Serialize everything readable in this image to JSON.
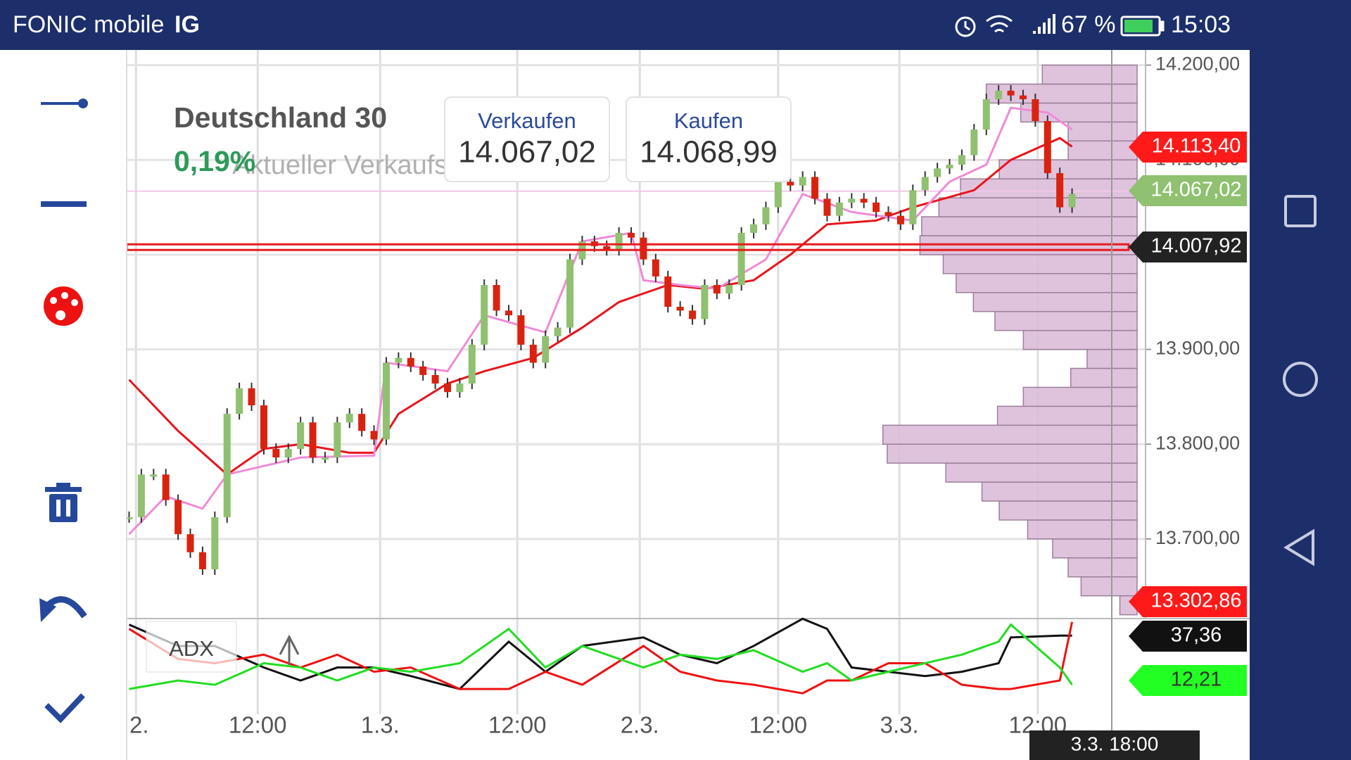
{
  "status_bar": {
    "carrier": "FONIC mobile",
    "carrier_badge": "IG",
    "battery": "67 %",
    "time": "15:03"
  },
  "header": {
    "instrument": "Deutschland 30",
    "change": "0,19%",
    "caption": "Aktueller Verkaufsk"
  },
  "quotes": [
    {
      "label": "Verkaufen",
      "price": "14.067,02"
    },
    {
      "label": "Kaufen",
      "price": "14.068,99"
    }
  ],
  "chart_data": {
    "type": "candlestick",
    "close": [
      13723,
      13768,
      13768,
      13741,
      13705,
      13686,
      13668,
      13723,
      13832,
      13859,
      13841,
      13795,
      13786,
      13795,
      13823,
      13786,
      13786,
      13823,
      13832,
      13814,
      13805,
      13886,
      13891,
      13882,
      13873,
      13864,
      13855,
      13864,
      13905,
      13968,
      13941,
      13936,
      13905,
      13886,
      13914,
      13923,
      13995,
      14014,
      14009,
      14005,
      14023,
      14018,
      13995,
      13977,
      13945,
      13941,
      13932,
      13968,
      13959,
      13968,
      14023,
      14032,
      14050,
      14077,
      14073,
      14082,
      14059,
      14041,
      14055,
      14059,
      14055,
      14045,
      14041,
      14032,
      14068,
      14082,
      14091,
      14095,
      14105,
      14132,
      14164,
      14173,
      14168,
      14164,
      14141,
      14086,
      14050,
      14064
    ],
    "up_color": "#8fc170",
    "down_color": "#d9230f",
    "series": [
      {
        "color": "#e8141c",
        "x": [
          0,
          4,
          8,
          11,
          14,
          18,
          20,
          22,
          26,
          29,
          33,
          37,
          40,
          44,
          47,
          51,
          54,
          57,
          61,
          64,
          69,
          72,
          76,
          77
        ],
        "values": [
          13868,
          13814,
          13768,
          13795,
          13800,
          13791,
          13791,
          13832,
          13864,
          13877,
          13891,
          13923,
          13950,
          13968,
          13964,
          13973,
          14000,
          14032,
          14036,
          14050,
          14068,
          14100,
          14123,
          14114
        ]
      },
      {
        "color": "#f08ad8",
        "x": [
          0,
          3,
          6,
          8,
          11,
          14,
          20,
          21,
          26,
          29,
          34,
          37,
          41,
          42,
          45,
          48,
          52,
          55,
          59,
          64,
          67,
          70,
          72,
          75,
          77
        ],
        "values": [
          13705,
          13745,
          13732,
          13768,
          13777,
          13786,
          13788,
          13886,
          13877,
          13936,
          13918,
          14014,
          14023,
          13973,
          13968,
          13964,
          13995,
          14064,
          14045,
          14036,
          14077,
          14095,
          14155,
          14150,
          14132
        ]
      }
    ],
    "xlim": [
      -0.2,
      83.0
    ],
    "xticks": [
      {
        "value": 0.56,
        "label": ".2."
      },
      {
        "value": 10.5,
        "label": "12:00"
      },
      {
        "value": 20.5,
        "label": "1.3."
      },
      {
        "value": 31.7,
        "label": "12:00"
      },
      {
        "value": 41.7,
        "label": "2.3."
      },
      {
        "value": 53.0,
        "label": "12:00"
      },
      {
        "value": 62.9,
        "label": "3.3."
      },
      {
        "value": 74.2,
        "label": "12:00"
      }
    ],
    "ylim": [
      13616,
      14216
    ],
    "yticks": [
      {
        "value": 13700,
        "label": "13.700,00"
      },
      {
        "value": 13800,
        "label": "13.800,00"
      },
      {
        "value": 13900,
        "label": "13.900,00"
      },
      {
        "value": 14000,
        "label": "14.000,00"
      },
      {
        "value": 14100,
        "label": "14.100,00"
      },
      {
        "value": 14200,
        "label": "14.200,00"
      }
    ],
    "grid": true,
    "hline": 14007.92,
    "hline_color": "#e51c1c",
    "sell_line": 14067.02,
    "sell_line_color": "#f2c6ea",
    "volume_profile": {
      "color": "#dcbcd9",
      "edge_color": "#9c7f9a",
      "bins": [
        13620,
        13640,
        13660,
        13680,
        13700,
        13720,
        13740,
        13760,
        13780,
        13800,
        13820,
        13840,
        13860,
        13880,
        13900,
        13920,
        13940,
        13960,
        13980,
        14000,
        14020,
        14040,
        14060,
        14080,
        14100,
        14120,
        14140,
        14160,
        14180,
        14200
      ],
      "values": [
        20,
        65,
        80,
        98,
        127,
        160,
        180,
        222,
        290,
        295,
        162,
        132,
        77,
        58,
        132,
        165,
        190,
        210,
        225,
        252,
        250,
        230,
        205,
        160,
        80,
        80,
        135,
        175,
        110
      ]
    },
    "price_tags": [
      {
        "label": "14.113,40",
        "color": "#ff1a1a",
        "text_color": "#ffffff"
      },
      {
        "label": "14.067,02",
        "color": "#8fc170",
        "text_color": "#ffffff"
      },
      {
        "label": "14.007,92",
        "color": "#222222",
        "text_color": "#ffffff"
      },
      {
        "label": "13.302,86",
        "color": "#ff1a1a",
        "text_color": "#ffffff"
      }
    ],
    "crosshair_label": "3.3. 18:00",
    "indicator": {
      "label": "ADX",
      "ylim": [
        3.5,
        47
      ],
      "x": [
        0,
        4,
        7,
        11,
        14,
        17,
        20,
        23,
        27,
        31,
        34,
        37,
        42,
        45,
        48,
        51,
        55,
        57,
        59,
        62,
        65,
        68,
        71,
        72,
        76,
        77
      ],
      "series": [
        {
          "color": "#111111",
          "values": [
            43.6,
            31.6,
            31.6,
            19.5,
            12.2,
            19.5,
            19.5,
            14.7,
            7.4,
            34.0,
            17.1,
            31.6,
            36.4,
            26.7,
            21.9,
            31.6,
            46.9,
            41.2,
            19.5,
            17.1,
            14.7,
            17.1,
            21.9,
            36.4,
            37.4,
            37.4
          ]
        },
        {
          "color": "#ee1111",
          "values": [
            41.2,
            24.3,
            21.9,
            26.7,
            19.5,
            26.7,
            17.1,
            19.5,
            7.4,
            7.4,
            17.1,
            9.8,
            31.6,
            17.1,
            12.2,
            9.8,
            5.0,
            12.2,
            12.2,
            21.9,
            21.9,
            9.8,
            7.4,
            7.4,
            12.2,
            45.1
          ]
        },
        {
          "color": "#22dd22",
          "values": [
            7.4,
            12.2,
            9.8,
            21.9,
            19.5,
            12.2,
            19.5,
            17.1,
            21.9,
            41.2,
            19.5,
            31.6,
            19.5,
            26.7,
            24.3,
            29.2,
            17.1,
            21.9,
            12.2,
            17.1,
            21.9,
            26.7,
            34.0,
            43.6,
            19.5,
            9.8
          ]
        }
      ],
      "tags": [
        {
          "label": "37,36",
          "color": "#111111",
          "text_color": "#ffffff"
        },
        {
          "label": "12,21",
          "color": "#22ff22",
          "text_color": "#333333"
        }
      ]
    }
  }
}
